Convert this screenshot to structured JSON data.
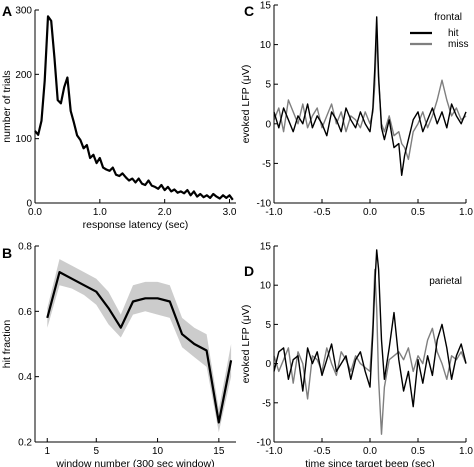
{
  "figure": {
    "panel_labels": [
      "A",
      "B",
      "C",
      "D"
    ],
    "legend_hit": "hit",
    "legend_miss": "miss",
    "colors": {
      "hit": "#000000",
      "miss": "#7f7f7f",
      "band": "#cccccc",
      "axis": "#000000"
    }
  },
  "chart_data": [
    {
      "panel": "A",
      "type": "line",
      "xlabel": "response latency (sec)",
      "ylabel": "number of trials",
      "xlim": [
        0,
        3.1
      ],
      "ylim": [
        0,
        300
      ],
      "xticks": [
        0.0,
        1.0,
        2.0,
        3.0
      ],
      "xtick_labels": [
        "0.0",
        "1.0",
        "2.0",
        "3.0"
      ],
      "yticks": [
        0,
        100,
        200,
        300
      ],
      "ytick_labels": [
        "0",
        "100",
        "200",
        "300"
      ],
      "grid": false,
      "series": [
        {
          "x": [
            0.0,
            0.05,
            0.1,
            0.15,
            0.2,
            0.25,
            0.3,
            0.35,
            0.4,
            0.45,
            0.5,
            0.55,
            0.6,
            0.65,
            0.7,
            0.75,
            0.8,
            0.85,
            0.9,
            0.95,
            1.0,
            1.05,
            1.1,
            1.15,
            1.2,
            1.25,
            1.3,
            1.35,
            1.4,
            1.45,
            1.5,
            1.55,
            1.6,
            1.65,
            1.7,
            1.75,
            1.8,
            1.85,
            1.9,
            1.95,
            2.0,
            2.05,
            2.1,
            2.15,
            2.2,
            2.25,
            2.3,
            2.35,
            2.4,
            2.45,
            2.5,
            2.55,
            2.6,
            2.65,
            2.7,
            2.75,
            2.8,
            2.85,
            2.9,
            2.95,
            3.0,
            3.05
          ],
          "values": [
            112,
            106,
            128,
            190,
            290,
            283,
            225,
            160,
            155,
            180,
            195,
            143,
            125,
            105,
            98,
            85,
            90,
            70,
            75,
            62,
            70,
            55,
            52,
            50,
            55,
            44,
            42,
            46,
            40,
            35,
            38,
            32,
            38,
            30,
            28,
            35,
            27,
            25,
            22,
            28,
            20,
            25,
            18,
            21,
            16,
            18,
            15,
            20,
            12,
            18,
            10,
            14,
            9,
            12,
            8,
            14,
            10,
            7,
            12,
            8,
            12,
            5
          ]
        }
      ]
    },
    {
      "panel": "B",
      "type": "line",
      "xlabel": "window number (300 sec window)",
      "ylabel": "hit fraction",
      "xlim": [
        0,
        16.4
      ],
      "ylim": [
        0.2,
        0.8
      ],
      "xticks": [
        1,
        5,
        10,
        15
      ],
      "xtick_labels": [
        "1",
        "5",
        "10",
        "15"
      ],
      "yticks": [
        0.2,
        0.4,
        0.6,
        0.8
      ],
      "ytick_labels": [
        "0.2",
        "0.4",
        "0.6",
        "0.8"
      ],
      "grid": false,
      "series": [
        {
          "x": [
            1,
            2,
            3,
            4,
            5,
            6,
            7,
            8,
            9,
            10,
            11,
            12,
            13,
            14,
            15,
            16
          ],
          "values": [
            0.58,
            0.72,
            0.7,
            0.68,
            0.66,
            0.61,
            0.55,
            0.63,
            0.64,
            0.64,
            0.63,
            0.53,
            0.5,
            0.48,
            0.26,
            0.45
          ],
          "band_low": [
            0.55,
            0.68,
            0.67,
            0.65,
            0.62,
            0.56,
            0.52,
            0.59,
            0.6,
            0.59,
            0.58,
            0.49,
            0.46,
            0.43,
            0.23,
            0.4
          ],
          "band_high": [
            0.61,
            0.76,
            0.74,
            0.72,
            0.7,
            0.66,
            0.59,
            0.68,
            0.69,
            0.69,
            0.68,
            0.58,
            0.55,
            0.53,
            0.3,
            0.5
          ]
        }
      ]
    },
    {
      "panel": "C",
      "type": "line",
      "title": "frontal",
      "xlabel": "",
      "ylabel": "evoked LFP (μV)",
      "xlim": [
        -1.0,
        1.0
      ],
      "ylim": [
        -10,
        15
      ],
      "xticks": [
        -1.0,
        -0.5,
        0.0,
        0.5,
        1.0
      ],
      "xtick_labels": [
        "-1.0",
        "-0.5",
        "0.0",
        "0.5",
        "1.0"
      ],
      "yticks": [
        -10,
        -5,
        0,
        5,
        10,
        15
      ],
      "ytick_labels": [
        "-10",
        "-5",
        "0",
        "5",
        "10",
        "15"
      ],
      "legend_position": "top-right",
      "grid": false,
      "series": [
        {
          "name": "hit",
          "x": [
            -1.0,
            -0.95,
            -0.9,
            -0.85,
            -0.8,
            -0.75,
            -0.7,
            -0.65,
            -0.6,
            -0.55,
            -0.5,
            -0.45,
            -0.4,
            -0.35,
            -0.3,
            -0.25,
            -0.2,
            -0.15,
            -0.1,
            -0.05,
            0.0,
            0.03,
            0.05,
            0.07,
            0.09,
            0.12,
            0.15,
            0.2,
            0.25,
            0.3,
            0.33,
            0.36,
            0.4,
            0.45,
            0.5,
            0.55,
            0.6,
            0.65,
            0.7,
            0.75,
            0.8,
            0.85,
            0.9,
            0.95,
            1.0
          ],
          "values": [
            1.5,
            -0.5,
            2.0,
            0.5,
            -1.0,
            1.0,
            0.0,
            2.5,
            -0.5,
            1.0,
            0.0,
            -1.5,
            1.5,
            0.5,
            -1.0,
            2.0,
            0.5,
            -0.5,
            1.5,
            0.0,
            -1.0,
            2.0,
            7.0,
            13.5,
            6.0,
            -0.5,
            -2.0,
            0.5,
            -3.0,
            -2.5,
            -6.5,
            -4.0,
            -2.0,
            0.5,
            1.5,
            -1.0,
            0.5,
            2.0,
            0.0,
            1.5,
            -0.5,
            2.5,
            1.0,
            0.0,
            1.5
          ]
        },
        {
          "name": "miss",
          "x": [
            -1.0,
            -0.95,
            -0.9,
            -0.85,
            -0.8,
            -0.75,
            -0.7,
            -0.65,
            -0.6,
            -0.55,
            -0.5,
            -0.45,
            -0.4,
            -0.35,
            -0.3,
            -0.25,
            -0.2,
            -0.15,
            -0.1,
            -0.05,
            0.0,
            0.03,
            0.05,
            0.07,
            0.09,
            0.12,
            0.15,
            0.2,
            0.25,
            0.3,
            0.33,
            0.36,
            0.4,
            0.45,
            0.5,
            0.55,
            0.6,
            0.65,
            0.7,
            0.75,
            0.8,
            0.85,
            0.9,
            0.95,
            1.0
          ],
          "values": [
            0.5,
            2.0,
            -1.0,
            3.0,
            1.5,
            0.0,
            2.5,
            -0.5,
            1.0,
            2.0,
            -0.5,
            1.0,
            2.5,
            0.0,
            1.5,
            -1.0,
            1.0,
            0.5,
            -0.5,
            1.5,
            0.0,
            1.5,
            5.0,
            11.5,
            5.5,
            0.0,
            -1.0,
            1.0,
            -1.5,
            -1.0,
            -2.5,
            -3.0,
            -4.5,
            -1.0,
            0.0,
            1.5,
            -0.5,
            1.0,
            3.0,
            5.5,
            3.0,
            1.0,
            2.0,
            0.5,
            1.0
          ]
        }
      ]
    },
    {
      "panel": "D",
      "type": "line",
      "title": "parietal",
      "xlabel": "time since target beep (sec)",
      "ylabel": "evoked LFP (μV)",
      "xlim": [
        -1.0,
        1.0
      ],
      "ylim": [
        -10,
        15
      ],
      "xticks": [
        -1.0,
        -0.5,
        0.0,
        0.5,
        1.0
      ],
      "xtick_labels": [
        "-1.0",
        "-0.5",
        "0.0",
        "0.5",
        "1.0"
      ],
      "yticks": [
        -10,
        -5,
        0,
        5,
        10,
        15
      ],
      "ytick_labels": [
        "-10",
        "-5",
        "0",
        "5",
        "10",
        "15"
      ],
      "grid": false,
      "series": [
        {
          "name": "hit",
          "x": [
            -1.0,
            -0.95,
            -0.9,
            -0.85,
            -0.8,
            -0.75,
            -0.7,
            -0.65,
            -0.6,
            -0.55,
            -0.5,
            -0.45,
            -0.4,
            -0.35,
            -0.3,
            -0.25,
            -0.2,
            -0.15,
            -0.1,
            -0.05,
            0.0,
            0.03,
            0.05,
            0.07,
            0.09,
            0.12,
            0.15,
            0.2,
            0.25,
            0.3,
            0.35,
            0.4,
            0.45,
            0.5,
            0.55,
            0.6,
            0.65,
            0.7,
            0.75,
            0.8,
            0.85,
            0.9,
            0.95,
            1.0
          ],
          "values": [
            -1.0,
            1.5,
            2.0,
            -2.0,
            0.5,
            1.0,
            -3.5,
            2.0,
            0.0,
            1.5,
            -1.5,
            0.5,
            2.5,
            -1.0,
            0.0,
            1.0,
            -2.0,
            0.5,
            1.5,
            -1.0,
            -3.0,
            4.0,
            10.0,
            14.5,
            12.0,
            3.0,
            -2.0,
            2.0,
            6.5,
            0.5,
            -3.5,
            -1.0,
            -5.5,
            0.5,
            -2.5,
            1.0,
            -1.5,
            3.0,
            5.0,
            2.0,
            -2.0,
            1.0,
            2.5,
            0.0
          ]
        },
        {
          "name": "miss",
          "x": [
            -1.0,
            -0.95,
            -0.9,
            -0.85,
            -0.8,
            -0.75,
            -0.7,
            -0.65,
            -0.6,
            -0.55,
            -0.5,
            -0.45,
            -0.4,
            -0.35,
            -0.3,
            -0.25,
            -0.2,
            -0.15,
            -0.1,
            -0.05,
            0.0,
            0.03,
            0.05,
            0.07,
            0.09,
            0.12,
            0.15,
            0.2,
            0.25,
            0.3,
            0.35,
            0.4,
            0.45,
            0.5,
            0.55,
            0.6,
            0.65,
            0.7,
            0.75,
            0.8,
            0.85,
            0.9,
            0.95,
            1.0
          ],
          "values": [
            1.0,
            -1.0,
            0.5,
            2.0,
            -2.5,
            1.5,
            0.0,
            -4.5,
            1.0,
            0.5,
            -1.0,
            2.0,
            0.0,
            -1.5,
            1.5,
            0.5,
            -1.0,
            1.0,
            0.0,
            -0.5,
            -1.0,
            5.0,
            12.0,
            7.0,
            -2.0,
            -9.0,
            -3.0,
            0.5,
            1.0,
            1.5,
            0.5,
            2.0,
            -1.0,
            1.0,
            0.0,
            3.0,
            4.5,
            1.5,
            0.0,
            -2.0,
            1.0,
            0.5,
            1.5,
            0.0
          ]
        }
      ]
    }
  ]
}
